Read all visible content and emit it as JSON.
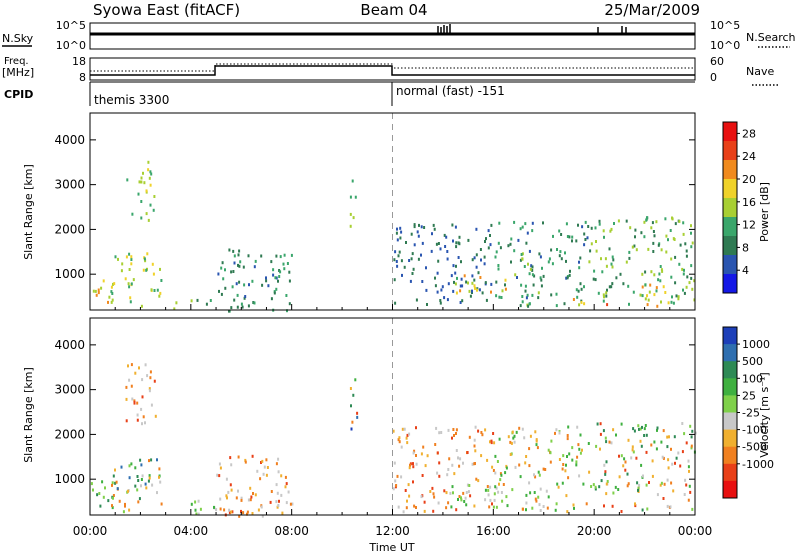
{
  "header": {
    "station": "Syowa East (fitACF)",
    "beam": "Beam 04",
    "date": "25/Mar/2009"
  },
  "top_panels": {
    "nsky_label": "N.Sky",
    "nsky_ticks": [
      "10^5",
      "10^0"
    ],
    "nsearch_label": "N.Search",
    "freq_label_1": "Freq.",
    "freq_label_2": "[MHz]",
    "freq_ticks": [
      "18",
      "8"
    ],
    "nave_label": "Nave",
    "nave_ticks": [
      "60",
      "0"
    ],
    "cpid_label": "CPID",
    "cpid_modes": [
      "themis 3300",
      "normal (fast) -151"
    ]
  },
  "chart_data": [
    {
      "type": "heatmap",
      "name": "power",
      "ylabel": "Slant Range [km]",
      "xlabel": "",
      "x_ticks": [
        "00:00",
        "04:00",
        "08:00",
        "12:00",
        "16:00",
        "20:00",
        "00:00"
      ],
      "y_ticks": [
        1000,
        2000,
        3000,
        4000
      ],
      "ylim": [
        200,
        4600
      ],
      "xlim_hours": [
        0,
        24
      ],
      "colorbar": {
        "label": "Power [dB]",
        "ticks": [
          "4",
          "8",
          "12",
          "16",
          "20",
          "24",
          "28"
        ],
        "range": [
          0,
          30
        ],
        "colors": [
          "#1418e6",
          "#2a55b0",
          "#2f7a52",
          "#3aa66b",
          "#a8cf33",
          "#f0d22a",
          "#f08a1e",
          "#e84018",
          "#e81010"
        ]
      },
      "regions": [
        {
          "t": [
            0.0,
            1.0
          ],
          "r": [
            300,
            900
          ],
          "v": [
            14,
            22
          ]
        },
        {
          "t": [
            0.8,
            2.8
          ],
          "r": [
            300,
            1500
          ],
          "v": [
            10,
            20
          ]
        },
        {
          "t": [
            1.4,
            2.6
          ],
          "r": [
            2200,
            3600
          ],
          "v": [
            10,
            18
          ]
        },
        {
          "t": [
            3.2,
            5.0
          ],
          "r": [
            250,
            550
          ],
          "v": [
            8,
            16
          ]
        },
        {
          "t": [
            5.0,
            8.0
          ],
          "r": [
            200,
            1600
          ],
          "v": [
            6,
            12
          ]
        },
        {
          "t": [
            10.3,
            10.6
          ],
          "r": [
            2100,
            3300
          ],
          "v": [
            10,
            20
          ]
        },
        {
          "t": [
            12.0,
            16.0
          ],
          "r": [
            300,
            2200
          ],
          "v": [
            4,
            10
          ]
        },
        {
          "t": [
            14.2,
            16.5
          ],
          "r": [
            600,
            1000
          ],
          "v": [
            12,
            22
          ]
        },
        {
          "t": [
            16.0,
            20.0
          ],
          "r": [
            300,
            2200
          ],
          "v": [
            6,
            14
          ]
        },
        {
          "t": [
            18.5,
            20.5
          ],
          "r": [
            300,
            500
          ],
          "v": [
            14,
            24
          ]
        },
        {
          "t": [
            20.0,
            24.0
          ],
          "r": [
            300,
            2300
          ],
          "v": [
            8,
            16
          ]
        },
        {
          "t": [
            21.5,
            23.0
          ],
          "r": [
            300,
            800
          ],
          "v": [
            14,
            22
          ]
        }
      ]
    },
    {
      "type": "heatmap",
      "name": "velocity",
      "ylabel": "Slant Range [km]",
      "xlabel": "Time UT",
      "x_ticks": [
        "00:00",
        "04:00",
        "08:00",
        "12:00",
        "16:00",
        "20:00",
        "00:00"
      ],
      "y_ticks": [
        1000,
        2000,
        3000,
        4000
      ],
      "ylim": [
        200,
        4600
      ],
      "xlim_hours": [
        0,
        24
      ],
      "colorbar": {
        "label": "Velocity [m s⁻¹]",
        "ticks": [
          "1000",
          "500",
          "100",
          "25",
          "-25",
          "-100",
          "-500",
          "-1000"
        ],
        "colors": [
          "#1d3fb8",
          "#2f6fb0",
          "#2e8a55",
          "#3fb040",
          "#7fd04a",
          "#c8c8c8",
          "#f0b030",
          "#f08020",
          "#e84018",
          "#e81010"
        ]
      },
      "regions": [
        {
          "t": [
            0.0,
            1.0
          ],
          "r": [
            300,
            1000
          ],
          "v": [
            2,
            4
          ]
        },
        {
          "t": [
            0.8,
            2.8
          ],
          "r": [
            300,
            1500
          ],
          "v": [
            1,
            7
          ]
        },
        {
          "t": [
            1.4,
            2.6
          ],
          "r": [
            2200,
            3600
          ],
          "v": [
            5,
            8
          ]
        },
        {
          "t": [
            3.2,
            5.0
          ],
          "r": [
            250,
            550
          ],
          "v": [
            3,
            5
          ]
        },
        {
          "t": [
            5.0,
            8.0
          ],
          "r": [
            200,
            1600
          ],
          "v": [
            5,
            8
          ]
        },
        {
          "t": [
            10.3,
            10.6
          ],
          "r": [
            2100,
            3300
          ],
          "v": [
            0,
            9
          ]
        },
        {
          "t": [
            12.0,
            16.0
          ],
          "r": [
            300,
            2200
          ],
          "v": [
            5,
            8
          ]
        },
        {
          "t": [
            14.2,
            16.5
          ],
          "r": [
            400,
            900
          ],
          "v": [
            3,
            5
          ]
        },
        {
          "t": [
            16.0,
            20.0
          ],
          "r": [
            300,
            2200
          ],
          "v": [
            3,
            7
          ]
        },
        {
          "t": [
            20.0,
            24.0
          ],
          "r": [
            300,
            2300
          ],
          "v": [
            2,
            8
          ]
        }
      ]
    }
  ]
}
